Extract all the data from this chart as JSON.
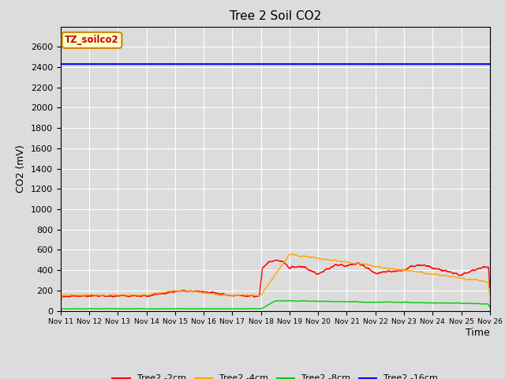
{
  "title": "Tree 2 Soil CO2",
  "ylabel": "CO2 (mV)",
  "xlabel": "Time",
  "annotation_text": "TZ_soilco2",
  "annotation_bg": "#FFFFCC",
  "annotation_edge": "#CC8800",
  "annotation_text_color": "#CC0000",
  "ylim": [
    0,
    2800
  ],
  "yticks": [
    0,
    200,
    400,
    600,
    800,
    1000,
    1200,
    1400,
    1600,
    1800,
    2000,
    2200,
    2400,
    2600
  ],
  "xtick_labels": [
    "Nov 11",
    "Nov 12",
    "Nov 13",
    "Nov 14",
    "Nov 15",
    "Nov 16",
    "Nov 17",
    "Nov 18",
    "Nov 19",
    "Nov 20",
    "Nov 21",
    "Nov 22",
    "Nov 23",
    "Nov 24",
    "Nov 25",
    "Nov 26"
  ],
  "bg_color": "#DCDCDC",
  "plot_bg_color": "#DCDCDC",
  "series_colors": {
    "2cm": "#FF0000",
    "4cm": "#FFA500",
    "8cm": "#00CC00",
    "16cm": "#0000FF"
  },
  "legend_labels": [
    "Tree2 -2cm",
    "Tree2 -4cm",
    "Tree2 -8cm",
    "Tree2 -16cm"
  ],
  "legend_colors": [
    "#FF0000",
    "#FFA500",
    "#00CC00",
    "#0000FF"
  ],
  "blue_line_value": 2430,
  "num_days": 15
}
